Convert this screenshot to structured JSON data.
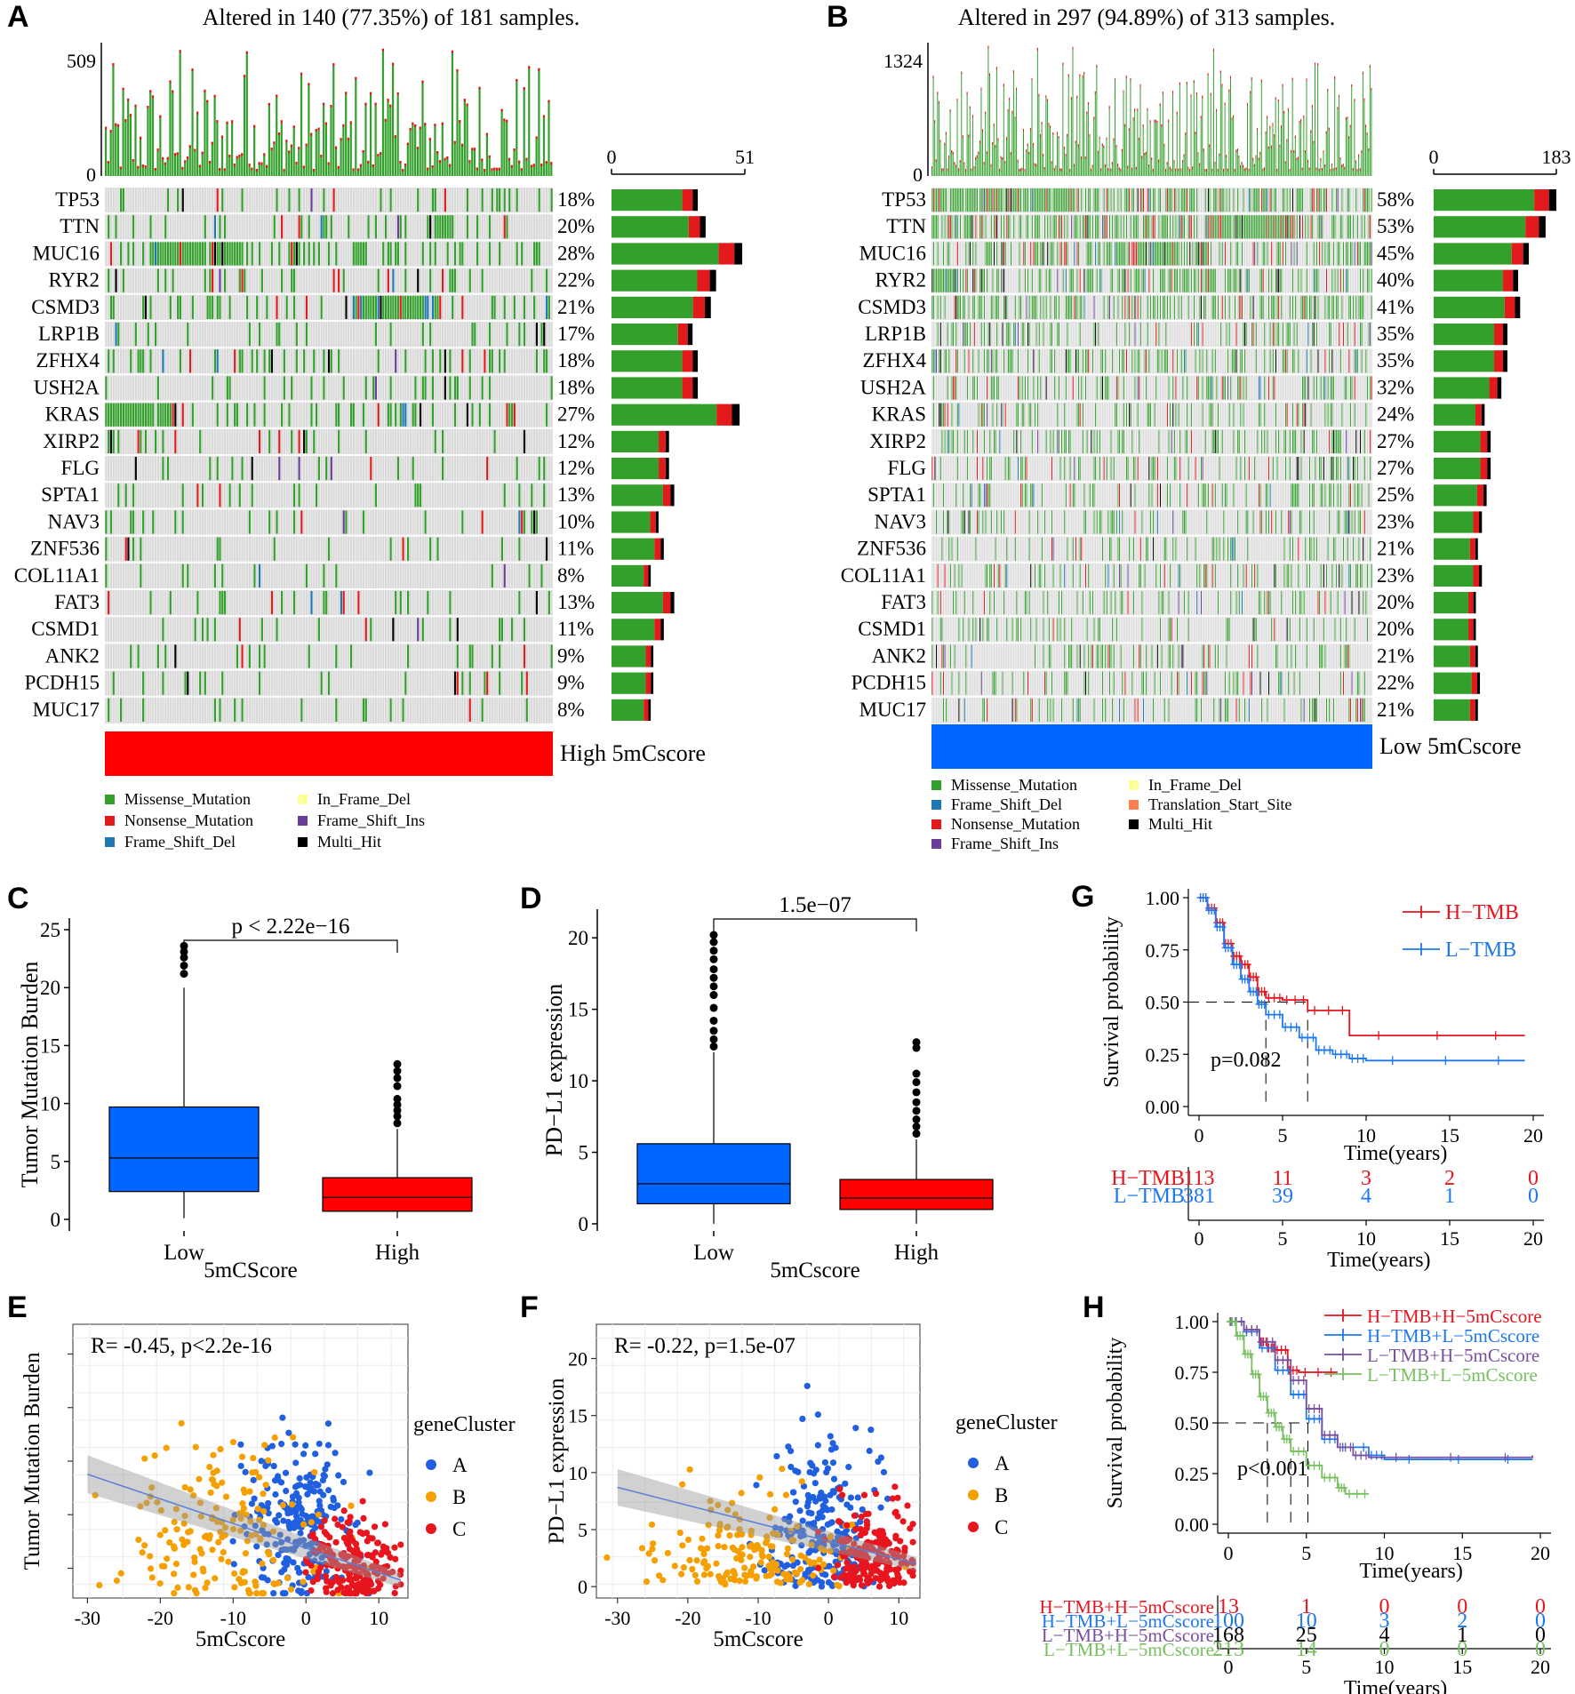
{
  "colors": {
    "missense": "#33a02c",
    "nonsense": "#e31a1c",
    "frame_shift_del": "#1f78b4",
    "frame_shift_ins": "#6a3d9a",
    "in_frame_del": "#ffff99",
    "translation_start_site": "#ff7f50",
    "multi_hit": "#000000",
    "high": "#ff0000",
    "low": "#0066ff",
    "cluster_a": "#1f5fe0",
    "cluster_b": "#f5a000",
    "cluster_c": "#e8141e",
    "grid_bg": "#d9d9d9"
  },
  "chart_data": [
    {
      "panel": "A",
      "type": "oncoplot",
      "title": "Altered in 140 (77.35%) of 181 samples.",
      "tmb_axis": {
        "min": "0",
        "max": "509"
      },
      "count_axis": {
        "min": "0",
        "max": "51",
        "max_value": 51
      },
      "genes": [
        "TP53",
        "TTN",
        "MUC16",
        "RYR2",
        "CSMD3",
        "LRP1B",
        "ZFHX4",
        "USH2A",
        "KRAS",
        "XIRP2",
        "FLG",
        "SPTA1",
        "NAV3",
        "ZNF536",
        "COL11A1",
        "FAT3",
        "CSMD1",
        "ANK2",
        "PCDH15",
        "MUC17"
      ],
      "percents": [
        "18%",
        "20%",
        "28%",
        "22%",
        "21%",
        "17%",
        "18%",
        "18%",
        "27%",
        "12%",
        "12%",
        "13%",
        "10%",
        "11%",
        "8%",
        "13%",
        "11%",
        "9%",
        "9%",
        "8%"
      ],
      "counts": [
        33,
        36,
        50,
        40,
        38,
        31,
        33,
        33,
        49,
        22,
        22,
        24,
        18,
        20,
        15,
        24,
        20,
        16,
        16,
        15
      ],
      "group_label": "High 5mCscore",
      "legend": [
        "Missense_Mutation",
        "Nonsense_Mutation",
        "Frame_Shift_Del",
        "In_Frame_Del",
        "Frame_Shift_Ins",
        "Multi_Hit"
      ]
    },
    {
      "panel": "B",
      "type": "oncoplot",
      "title": "Altered in 297 (94.89%) of 313 samples.",
      "tmb_axis": {
        "min": "0",
        "max": "1324"
      },
      "count_axis": {
        "min": "0",
        "max": "183",
        "max_value": 183
      },
      "genes": [
        "TP53",
        "TTN",
        "MUC16",
        "RYR2",
        "CSMD3",
        "LRP1B",
        "ZFHX4",
        "USH2A",
        "KRAS",
        "XIRP2",
        "FLG",
        "SPTA1",
        "NAV3",
        "ZNF536",
        "COL11A1",
        "FAT3",
        "CSMD1",
        "ANK2",
        "PCDH15",
        "MUC17"
      ],
      "percents": [
        "58%",
        "53%",
        "45%",
        "40%",
        "41%",
        "35%",
        "35%",
        "32%",
        "24%",
        "27%",
        "27%",
        "25%",
        "23%",
        "21%",
        "23%",
        "20%",
        "20%",
        "21%",
        "22%",
        "21%"
      ],
      "counts": [
        183,
        167,
        142,
        126,
        129,
        110,
        110,
        101,
        76,
        85,
        85,
        79,
        72,
        66,
        72,
        63,
        63,
        66,
        69,
        66
      ],
      "group_label": "Low 5mCscore",
      "legend": [
        "Missense_Mutation",
        "Frame_Shift_Del",
        "Nonsense_Mutation",
        "Frame_Shift_Ins",
        "In_Frame_Del",
        "Translation_Start_Site",
        "Multi_Hit"
      ]
    },
    {
      "panel": "C",
      "type": "box",
      "categories": [
        "Low",
        "High"
      ],
      "xlabel": "5mCScore",
      "ylabel": "Tumor Mutation Burden",
      "ylim": [
        -1,
        26
      ],
      "yticks": [
        "0",
        "5",
        "10",
        "15",
        "20",
        "25"
      ],
      "pvalue": "p < 2.22e−16",
      "boxes": [
        {
          "q1": 2.4,
          "median": 5.3,
          "q3": 9.7,
          "lo": 0.1,
          "hi": 20.0,
          "outliers": [
            21.2,
            21.9,
            22.6,
            23.1,
            23.6
          ]
        },
        {
          "q1": 0.7,
          "median": 1.9,
          "q3": 3.6,
          "lo": 0.1,
          "hi": 7.8,
          "outliers": [
            8.3,
            8.9,
            9.4,
            9.9,
            10.4,
            11.5,
            12.2,
            12.8,
            13.4
          ]
        }
      ]
    },
    {
      "panel": "D",
      "type": "box",
      "categories": [
        "Low",
        "High"
      ],
      "xlabel": "5mCscore",
      "ylabel": "PD−L1 expression",
      "ylim": [
        -0.5,
        22
      ],
      "yticks": [
        "0",
        "5",
        "10",
        "15",
        "20"
      ],
      "pvalue": "1.5e−07",
      "boxes": [
        {
          "q1": 1.4,
          "median": 2.8,
          "q3": 5.6,
          "lo": 0.0,
          "hi": 12.0,
          "outliers": [
            12.4,
            12.9,
            13.5,
            14.2,
            15.1,
            16.0,
            16.6,
            17.2,
            17.8,
            18.5,
            19.1,
            19.7,
            20.2
          ]
        },
        {
          "q1": 1.0,
          "median": 1.8,
          "q3": 3.1,
          "lo": 0.0,
          "hi": 5.9,
          "outliers": [
            6.3,
            6.8,
            7.3,
            7.9,
            8.5,
            9.2,
            9.9,
            10.5,
            12.3,
            12.7
          ]
        }
      ]
    },
    {
      "panel": "E",
      "type": "scatter",
      "xlabel": "5mCscore",
      "ylabel": "Tumor Mutation Burden",
      "xlim": [
        -32,
        14
      ],
      "ylim": [
        0,
        23
      ],
      "xticks": [
        "-30",
        "-20",
        "-10",
        "0",
        "10"
      ],
      "annotation": "R= -0.45, p<2.2e-16",
      "legend_title": "geneCluster",
      "legend": [
        "A",
        "B",
        "C"
      ],
      "regression": {
        "x1": -30,
        "y1": 10.4,
        "x2": 13,
        "y2": 1.5
      }
    },
    {
      "panel": "F",
      "type": "scatter",
      "xlabel": "5mCscore",
      "ylabel": "PD−L1 expression",
      "xlim": [
        -33,
        13
      ],
      "ylim": [
        -1,
        23
      ],
      "xticks": [
        "-30",
        "-20",
        "-10",
        "0",
        "10"
      ],
      "yticks": [
        "0",
        "5",
        "10",
        "15",
        "20"
      ],
      "annotation": "R= -0.22, p=1.5e-07",
      "legend_title": "geneCluster",
      "legend": [
        "A",
        "B",
        "C"
      ],
      "regression": {
        "x1": -30,
        "y1": 8.7,
        "x2": 12.5,
        "y2": 2.0
      }
    },
    {
      "panel": "G",
      "type": "survival",
      "xlabel": "Time(years)",
      "ylabel": "Survival probability",
      "xticks": [
        "0",
        "5",
        "10",
        "15",
        "20"
      ],
      "yticks": [
        "0.00",
        "0.25",
        "0.50",
        "0.75",
        "1.00"
      ],
      "pvalue": "p=0.082",
      "series": [
        {
          "name": "H−TMB",
          "color": "#e8141e",
          "times": [
            0,
            0.5,
            1,
            1.5,
            2,
            2.5,
            3,
            3.5,
            4,
            5,
            6.5,
            9,
            19.5
          ],
          "surv": [
            1,
            0.95,
            0.88,
            0.78,
            0.72,
            0.68,
            0.62,
            0.55,
            0.52,
            0.51,
            0.46,
            0.34,
            0.34
          ]
        },
        {
          "name": "L−TMB",
          "color": "#1e78f0",
          "times": [
            0,
            0.5,
            1,
            1.5,
            2,
            2.5,
            3,
            3.5,
            4,
            5,
            6,
            7,
            8,
            9,
            10,
            19.5
          ],
          "surv": [
            1,
            0.94,
            0.86,
            0.76,
            0.68,
            0.61,
            0.55,
            0.49,
            0.44,
            0.38,
            0.33,
            0.27,
            0.25,
            0.23,
            0.22,
            0.22
          ]
        }
      ],
      "risk_table": {
        "xlabel": "Time(years)",
        "rows": [
          {
            "name": "H−TMB",
            "values": [
              "113",
              "11",
              "3",
              "2",
              "0"
            ]
          },
          {
            "name": "L−TMB",
            "values": [
              "381",
              "39",
              "4",
              "1",
              "0"
            ]
          }
        ]
      }
    },
    {
      "panel": "H",
      "type": "survival",
      "xlabel": "Time(years)",
      "ylabel": "Survival probability",
      "xticks": [
        "0",
        "5",
        "10",
        "15",
        "20"
      ],
      "yticks": [
        "0.00",
        "0.25",
        "0.50",
        "0.75",
        "1.00"
      ],
      "pvalue": "p<0.001",
      "series": [
        {
          "name": "H−TMB+H−5mCscore",
          "color": "#e8141e",
          "times": [
            0,
            1,
            2,
            2.5,
            3,
            3.8,
            4.5,
            7
          ],
          "surv": [
            1,
            0.96,
            0.9,
            0.87,
            0.86,
            0.76,
            0.75,
            0.75
          ]
        },
        {
          "name": "H−TMB+L−5mCscore",
          "color": "#1e78f0",
          "times": [
            0,
            1,
            2,
            3,
            4,
            5,
            6,
            7,
            9,
            10,
            19.5
          ],
          "surv": [
            1,
            0.95,
            0.87,
            0.76,
            0.64,
            0.52,
            0.42,
            0.38,
            0.34,
            0.32,
            0.32
          ]
        },
        {
          "name": "L−TMB+H−5mCscore",
          "color": "#7a4fa0",
          "times": [
            0,
            1,
            2,
            3,
            4,
            5,
            6,
            7,
            8,
            9,
            19.5
          ],
          "surv": [
            1,
            0.96,
            0.9,
            0.81,
            0.71,
            0.57,
            0.44,
            0.38,
            0.34,
            0.33,
            0.34
          ]
        },
        {
          "name": "L−TMB+L−5mCscore",
          "color": "#77c060",
          "times": [
            0,
            0.5,
            1,
            1.5,
            2,
            2.5,
            3,
            3.5,
            4,
            5,
            6,
            7,
            7.5,
            9
          ],
          "surv": [
            1,
            0.93,
            0.84,
            0.74,
            0.63,
            0.55,
            0.48,
            0.42,
            0.36,
            0.29,
            0.23,
            0.18,
            0.15,
            0.15
          ]
        }
      ],
      "risk_table": {
        "xlabel": "Time(years)",
        "rows": [
          {
            "name": "H−TMB+H−5mCscore",
            "values": [
              "13",
              "1",
              "0",
              "0",
              "0"
            ]
          },
          {
            "name": "H−TMB+L−5mCscore",
            "values": [
              "100",
              "10",
              "3",
              "2",
              "0"
            ]
          },
          {
            "name": "L−TMB+H−5mCscore",
            "values": [
              "168",
              "25",
              "4",
              "1",
              "0"
            ]
          },
          {
            "name": "L−TMB+L−5mCscore",
            "values": [
              "213",
              "14",
              "0",
              "0",
              "0"
            ]
          }
        ]
      }
    }
  ]
}
